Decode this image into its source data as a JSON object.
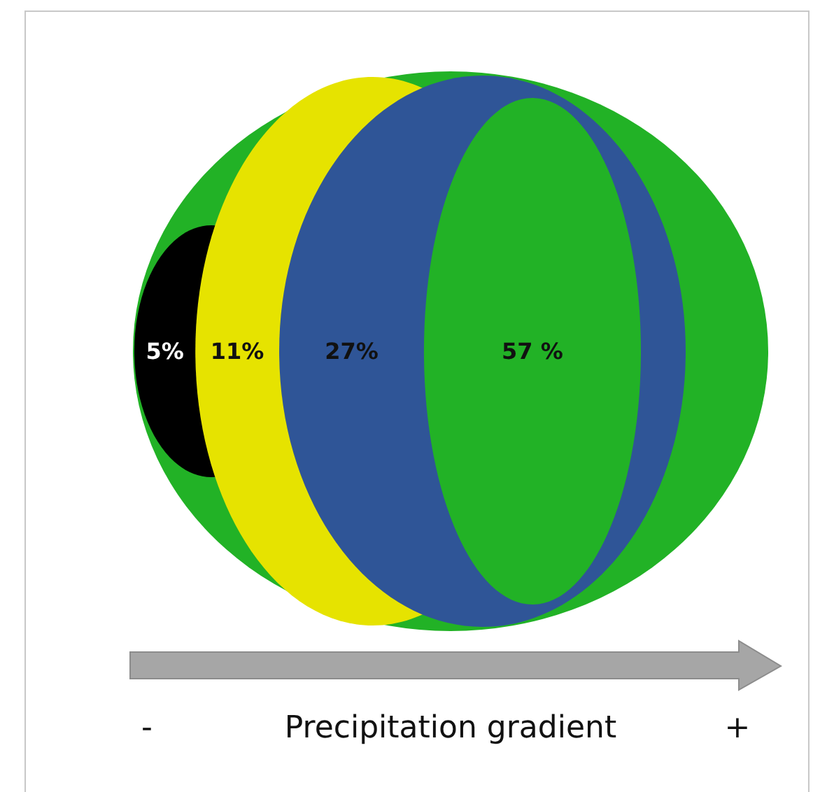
{
  "chart_data": {
    "type": "other",
    "categories": [
      null,
      null,
      null,
      null
    ],
    "values": [
      5,
      11,
      27,
      57
    ],
    "colors": [
      "#000000",
      "#e6e300",
      "#2f5597",
      "#22b226"
    ],
    "value_labels": [
      "5%",
      "11%",
      "27%",
      "57 %"
    ],
    "xlabel": "Precipitation gradient",
    "annotations": [
      "-",
      "+"
    ]
  }
}
